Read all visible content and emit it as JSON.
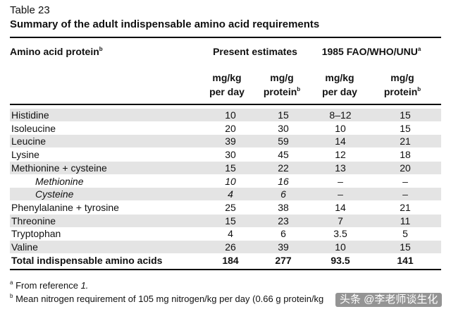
{
  "caption": "Table 23",
  "title": "Summary of the adult indispensable amino acid requirements",
  "header": {
    "row_label": {
      "text": "Amino acid protein",
      "sup": "b"
    },
    "groups": [
      "Present estimates",
      {
        "text": "1985 FAO/WHO/UNU",
        "sup": "a"
      }
    ],
    "columns": [
      {
        "lines": [
          "mg/kg",
          "per day"
        ]
      },
      {
        "lines": [
          "mg/g",
          "protein"
        ],
        "sup": "b"
      },
      {
        "lines": [
          "mg/kg",
          "per day"
        ]
      },
      {
        "lines": [
          "mg/g",
          "protein"
        ],
        "sup": "b"
      }
    ]
  },
  "rows": [
    {
      "label": "Histidine",
      "cells": [
        "10",
        "15",
        "8–12",
        "15"
      ]
    },
    {
      "label": "Isoleucine",
      "cells": [
        "20",
        "30",
        "10",
        "15"
      ]
    },
    {
      "label": "Leucine",
      "cells": [
        "39",
        "59",
        "14",
        "21"
      ]
    },
    {
      "label": "Lysine",
      "cells": [
        "30",
        "45",
        "12",
        "18"
      ]
    },
    {
      "label": "Methionine + cysteine",
      "cells": [
        "15",
        "22",
        "13",
        "20"
      ]
    },
    {
      "label": "Methionine",
      "cells": [
        "10",
        "16",
        "–",
        "–"
      ],
      "italic": true
    },
    {
      "label": "Cysteine",
      "cells": [
        "4",
        "6",
        "–",
        "–"
      ],
      "italic": true
    },
    {
      "label": "Phenylalanine + tyrosine",
      "cells": [
        "25",
        "38",
        "14",
        "21"
      ]
    },
    {
      "label": "Threonine",
      "cells": [
        "15",
        "23",
        "7",
        "11"
      ]
    },
    {
      "label": "Tryptophan",
      "cells": [
        "4",
        "6",
        "3.5",
        "5"
      ]
    },
    {
      "label": "Valine",
      "cells": [
        "26",
        "39",
        "10",
        "15"
      ]
    },
    {
      "label": "Total indispensable amino acids",
      "cells": [
        "184",
        "277",
        "93.5",
        "141"
      ],
      "bold": true
    }
  ],
  "footnotes": [
    {
      "mark": "a",
      "text": "From reference ",
      "ref": "1."
    },
    {
      "mark": "b",
      "text": "Mean nitrogen requirement of 105 mg nitrogen/kg per day (0.66 g protein/kg"
    }
  ],
  "watermark": "头条 @李老师谈生化"
}
